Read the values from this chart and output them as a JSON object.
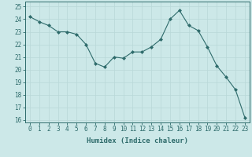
{
  "x": [
    0,
    1,
    2,
    3,
    4,
    5,
    6,
    7,
    8,
    9,
    10,
    11,
    12,
    13,
    14,
    15,
    16,
    17,
    18,
    19,
    20,
    21,
    22,
    23
  ],
  "y": [
    24.2,
    23.8,
    23.5,
    23.0,
    23.0,
    22.8,
    22.0,
    20.5,
    20.2,
    21.0,
    20.9,
    21.4,
    21.4,
    21.8,
    22.4,
    24.0,
    24.7,
    23.5,
    23.1,
    21.8,
    20.3,
    19.4,
    18.4,
    16.2
  ],
  "line_color": "#2e6b6b",
  "marker": "D",
  "marker_size": 2.0,
  "bg_color": "#cce8e8",
  "grid_color": "#b8d8d8",
  "xlabel": "Humidex (Indice chaleur)",
  "xlim": [
    -0.5,
    23.5
  ],
  "ylim": [
    15.8,
    25.4
  ],
  "yticks": [
    16,
    17,
    18,
    19,
    20,
    21,
    22,
    23,
    24,
    25
  ],
  "xticks": [
    0,
    1,
    2,
    3,
    4,
    5,
    6,
    7,
    8,
    9,
    10,
    11,
    12,
    13,
    14,
    15,
    16,
    17,
    18,
    19,
    20,
    21,
    22,
    23
  ],
  "tick_color": "#2e6b6b",
  "label_fontsize": 6.5,
  "tick_fontsize": 5.5,
  "linewidth": 0.8
}
